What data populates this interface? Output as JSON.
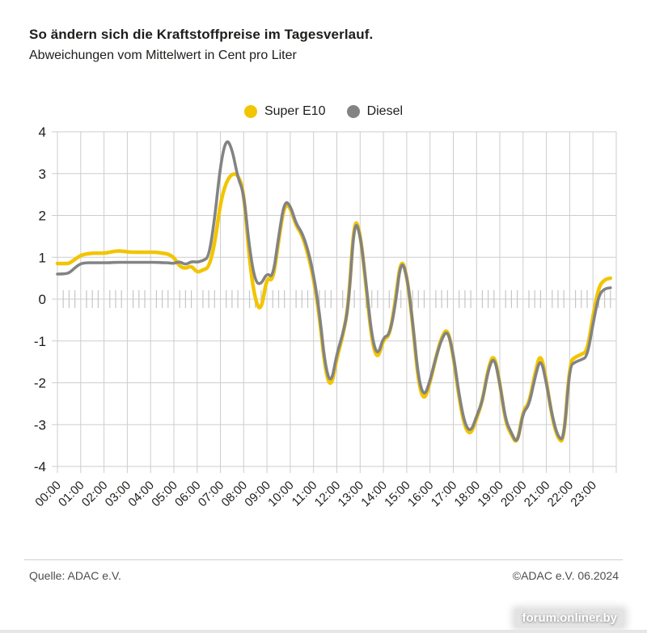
{
  "header": {
    "title": "So ändern sich die Kraftstoffpreise im Tagesverlauf.",
    "subtitle": "Abweichungen vom Mittelwert in Cent pro Liter"
  },
  "legend": [
    {
      "label": "Super E10",
      "color": "#F2C500"
    },
    {
      "label": "Diesel",
      "color": "#838383"
    }
  ],
  "chart_data": {
    "type": "line",
    "title": "So ändern sich die Kraftstoffpreise im Tagesverlauf.",
    "subtitle": "Abweichungen vom Mittelwert in Cent pro Liter",
    "xlabel": "",
    "ylabel": "",
    "ylim": [
      -4,
      4
    ],
    "yticks": [
      4,
      3,
      2,
      1,
      0,
      -1,
      -2,
      -3,
      -4
    ],
    "x_tick_labels": [
      "00:00",
      "01:00",
      "02:00",
      "03:00",
      "04:00",
      "05:00",
      "06:00",
      "07:00",
      "08:00",
      "09:00",
      "10:00",
      "11:00",
      "12:00",
      "13:00",
      "14:00",
      "15:00",
      "16:00",
      "17:00",
      "18:00",
      "19:00",
      "20:00",
      "21:00",
      "22:00",
      "23:00"
    ],
    "x_step_minutes": 15,
    "grid": true,
    "legend_position": "top-center",
    "series": [
      {
        "name": "Super E10",
        "color": "#F2C500",
        "values": [
          0.85,
          0.85,
          0.85,
          0.95,
          1.05,
          1.08,
          1.1,
          1.1,
          1.1,
          1.12,
          1.15,
          1.15,
          1.13,
          1.12,
          1.12,
          1.12,
          1.12,
          1.12,
          1.1,
          1.08,
          1.0,
          0.78,
          0.73,
          0.8,
          0.63,
          0.7,
          0.75,
          1.3,
          2.3,
          2.8,
          3.0,
          2.98,
          2.6,
          0.9,
          -0.05,
          -0.3,
          0.55,
          0.4,
          1.4,
          2.28,
          2.2,
          1.75,
          1.55,
          1.1,
          0.5,
          -0.4,
          -1.7,
          -2.15,
          -1.4,
          -0.9,
          -0.15,
          1.98,
          1.6,
          0.35,
          -1.0,
          -1.47,
          -0.95,
          -0.9,
          -0.1,
          1.0,
          0.6,
          -0.55,
          -2.0,
          -2.45,
          -2.0,
          -1.4,
          -0.9,
          -0.68,
          -1.35,
          -2.38,
          -3.08,
          -3.25,
          -2.85,
          -2.45,
          -1.65,
          -1.28,
          -2.0,
          -2.95,
          -3.25,
          -3.48,
          -2.65,
          -2.5,
          -1.8,
          -1.25,
          -1.95,
          -2.85,
          -3.35,
          -3.42,
          -1.5,
          -1.38,
          -1.32,
          -1.25,
          -0.4,
          0.3,
          0.47,
          0.5
        ]
      },
      {
        "name": "Diesel",
        "color": "#838383",
        "values": [
          0.6,
          0.6,
          0.62,
          0.75,
          0.85,
          0.87,
          0.87,
          0.87,
          0.87,
          0.87,
          0.88,
          0.88,
          0.88,
          0.88,
          0.88,
          0.88,
          0.88,
          0.88,
          0.87,
          0.87,
          0.85,
          0.9,
          0.82,
          0.9,
          0.88,
          0.92,
          1.0,
          1.9,
          3.2,
          3.85,
          3.6,
          2.9,
          2.55,
          1.2,
          0.4,
          0.35,
          0.63,
          0.5,
          1.5,
          2.35,
          2.25,
          1.8,
          1.6,
          1.2,
          0.6,
          -0.3,
          -1.6,
          -2.05,
          -1.3,
          -0.85,
          -0.2,
          1.9,
          1.58,
          0.4,
          -0.9,
          -1.38,
          -0.9,
          -0.87,
          -0.2,
          0.95,
          0.6,
          -0.5,
          -1.9,
          -2.35,
          -1.95,
          -1.4,
          -0.95,
          -0.73,
          -1.3,
          -2.3,
          -3.0,
          -3.18,
          -2.8,
          -2.45,
          -1.7,
          -1.35,
          -2.0,
          -2.9,
          -3.2,
          -3.48,
          -2.7,
          -2.55,
          -1.9,
          -1.38,
          -2.0,
          -2.8,
          -3.3,
          -3.38,
          -1.6,
          -1.5,
          -1.45,
          -1.38,
          -0.6,
          0.1,
          0.25,
          0.27
        ]
      }
    ]
  },
  "footer": {
    "source": "Quelle: ADAC e.V.",
    "copyright": "©ADAC e.V.  06.2024"
  },
  "watermark": "forum.onliner.by"
}
